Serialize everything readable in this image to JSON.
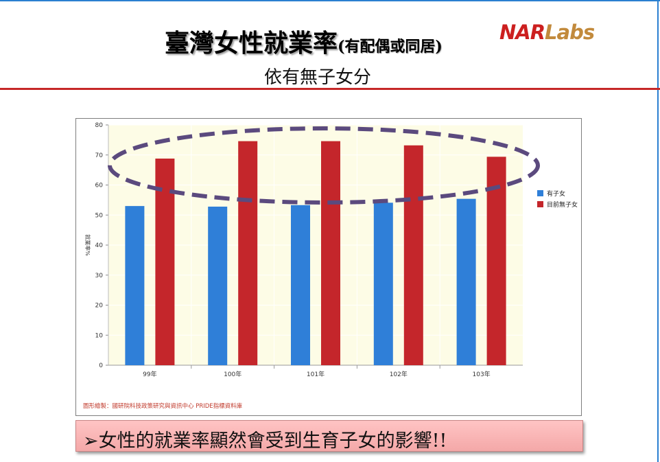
{
  "slide": {
    "title": "臺灣女性就業率",
    "title_paren": "(有配偶或同居)",
    "subtitle": "依有無子女分",
    "logo_a": "NAR",
    "logo_b": "Labs",
    "note_bullet": "➢",
    "note_text": "女性的就業率顯然會受到生育子女的影響!!"
  },
  "chart_data": {
    "type": "bar",
    "title": "",
    "xlabel": "",
    "ylabel": "就業率%",
    "categories": [
      "99年",
      "100年",
      "101年",
      "102年",
      "103年"
    ],
    "series": [
      {
        "name": "有子女",
        "color": "#2f7fd8",
        "values": [
          53.0,
          52.8,
          53.3,
          54.1,
          55.4
        ]
      },
      {
        "name": "目前無子女",
        "color": "#c4262b",
        "values": [
          68.8,
          74.6,
          74.6,
          73.2,
          69.4
        ]
      }
    ],
    "ylim": [
      0,
      80
    ],
    "yticks": [
      0,
      10,
      20,
      30,
      40,
      50,
      60,
      70,
      80
    ],
    "grid": true,
    "legend": "right",
    "plot_background": "#fdfce6",
    "annotation": "dashed ellipse highlighting the 目前無子女 bars",
    "credit": "圖形繪製：國研院科技政策研究與資訊中心 PRIDE指標資料庫"
  }
}
